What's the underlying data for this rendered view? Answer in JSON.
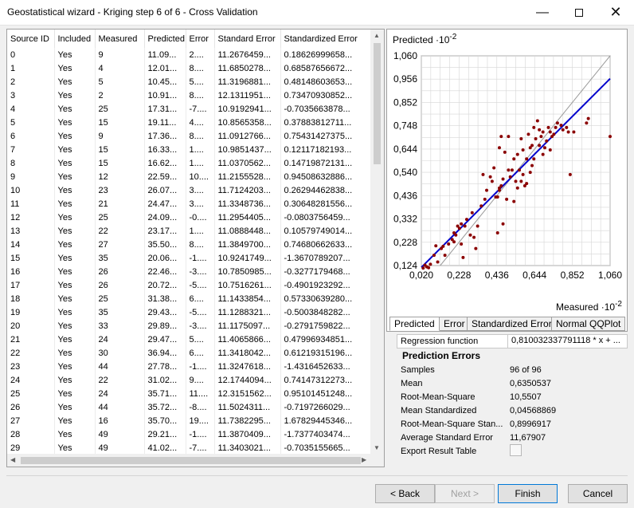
{
  "window": {
    "title": "Geostatistical wizard - Kriging step 6 of 6 - Cross Validation"
  },
  "table": {
    "columns": [
      "Source ID",
      "Included",
      "Measured",
      "Predicted",
      "Error",
      "Standard Error",
      "Standardized Error"
    ],
    "rows": [
      [
        "0",
        "Yes",
        "9",
        "11.09...",
        "2....",
        "11.2676459...",
        "0.18626999658..."
      ],
      [
        "1",
        "Yes",
        "4",
        "12.01...",
        "8....",
        "11.6850278...",
        "0.68587656672..."
      ],
      [
        "2",
        "Yes",
        "5",
        "10.45...",
        "5....",
        "11.3196881...",
        "0.48148603653..."
      ],
      [
        "3",
        "Yes",
        "2",
        "10.91...",
        "8....",
        "12.1311951...",
        "0.73470930852..."
      ],
      [
        "4",
        "Yes",
        "25",
        "17.31...",
        "-7....",
        "10.9192941...",
        "-0.7035663878..."
      ],
      [
        "5",
        "Yes",
        "15",
        "19.11...",
        "4....",
        "10.8565358...",
        "0.37883812711..."
      ],
      [
        "6",
        "Yes",
        "9",
        "17.36...",
        "8....",
        "11.0912766...",
        "0.75431427375..."
      ],
      [
        "7",
        "Yes",
        "15",
        "16.33...",
        "1....",
        "10.9851437...",
        "0.12117182193..."
      ],
      [
        "8",
        "Yes",
        "15",
        "16.62...",
        "1....",
        "11.0370562...",
        "0.14719872131..."
      ],
      [
        "9",
        "Yes",
        "12",
        "22.59...",
        "10....",
        "11.2155528...",
        "0.94508632886..."
      ],
      [
        "10",
        "Yes",
        "23",
        "26.07...",
        "3....",
        "11.7124203...",
        "0.26294462838..."
      ],
      [
        "11",
        "Yes",
        "21",
        "24.47...",
        "3....",
        "11.3348736...",
        "0.30648281556..."
      ],
      [
        "12",
        "Yes",
        "25",
        "24.09...",
        "-0....",
        "11.2954405...",
        "-0.0803756459..."
      ],
      [
        "13",
        "Yes",
        "22",
        "23.17...",
        "1....",
        "11.0888448...",
        "0.10579749014..."
      ],
      [
        "14",
        "Yes",
        "27",
        "35.50...",
        "8....",
        "11.3849700...",
        "0.74680662633..."
      ],
      [
        "15",
        "Yes",
        "35",
        "20.06...",
        "-1....",
        "10.9241749...",
        "-1.3670789207..."
      ],
      [
        "16",
        "Yes",
        "26",
        "22.46...",
        "-3....",
        "10.7850985...",
        "-0.3277179468..."
      ],
      [
        "17",
        "Yes",
        "26",
        "20.72...",
        "-5....",
        "10.7516261...",
        "-0.4901923292..."
      ],
      [
        "18",
        "Yes",
        "25",
        "31.38...",
        "6....",
        "11.1433854...",
        "0.57330639280..."
      ],
      [
        "19",
        "Yes",
        "35",
        "29.43...",
        "-5....",
        "11.1288321...",
        "-0.5003848282..."
      ],
      [
        "20",
        "Yes",
        "33",
        "29.89...",
        "-3....",
        "11.1175097...",
        "-0.2791759822..."
      ],
      [
        "21",
        "Yes",
        "24",
        "29.47...",
        "5....",
        "11.4065866...",
        "0.47996934851..."
      ],
      [
        "22",
        "Yes",
        "30",
        "36.94...",
        "6....",
        "11.3418042...",
        "0.61219315196..."
      ],
      [
        "23",
        "Yes",
        "44",
        "27.78...",
        "-1....",
        "11.3247618...",
        "-1.4316452633..."
      ],
      [
        "24",
        "Yes",
        "22",
        "31.02...",
        "9....",
        "12.1744094...",
        "0.74147312273..."
      ],
      [
        "25",
        "Yes",
        "24",
        "35.71...",
        "11....",
        "12.3151562...",
        "0.95101451248..."
      ],
      [
        "26",
        "Yes",
        "44",
        "35.72...",
        "-8....",
        "11.5024311...",
        "-0.7197266029..."
      ],
      [
        "27",
        "Yes",
        "16",
        "35.70...",
        "19....",
        "11.7382295...",
        "1.67829445346..."
      ],
      [
        "28",
        "Yes",
        "49",
        "29.21...",
        "-1....",
        "11.3870409...",
        "-1.7377403474..."
      ],
      [
        "29",
        "Yes",
        "49",
        "41.02...",
        "-7....",
        "11.3403021...",
        "-0.7035155665..."
      ]
    ]
  },
  "chart_data": {
    "type": "scatter",
    "ylabel": "Predicted",
    "ylabel_exp": "-2",
    "xlabel": "Measured",
    "xlabel_exp": "-2",
    "xlim": [
      0.02,
      1.06
    ],
    "ylim": [
      0.124,
      1.06
    ],
    "xticks": [
      "0,020",
      "0,228",
      "0,436",
      "0,644",
      "0,852",
      "1,060"
    ],
    "yticks": [
      "1,060",
      "0,956",
      "0,852",
      "0,748",
      "0,644",
      "0,540",
      "0,436",
      "0,332",
      "0,228",
      "0,124"
    ],
    "regression": {
      "slope": 0.81,
      "intercept": 0.0995
    },
    "reference_line": "1:1",
    "points": [
      [
        0.03,
        0.113
      ],
      [
        0.04,
        0.126
      ],
      [
        0.05,
        0.118
      ],
      [
        0.06,
        0.114
      ],
      [
        0.07,
        0.13
      ],
      [
        0.09,
        0.17
      ],
      [
        0.1,
        0.212
      ],
      [
        0.11,
        0.14
      ],
      [
        0.13,
        0.2
      ],
      [
        0.14,
        0.21
      ],
      [
        0.15,
        0.17
      ],
      [
        0.17,
        0.22
      ],
      [
        0.19,
        0.24
      ],
      [
        0.2,
        0.23
      ],
      [
        0.2,
        0.27
      ],
      [
        0.21,
        0.26
      ],
      [
        0.22,
        0.3
      ],
      [
        0.23,
        0.29
      ],
      [
        0.24,
        0.22
      ],
      [
        0.24,
        0.31
      ],
      [
        0.25,
        0.16
      ],
      [
        0.26,
        0.3
      ],
      [
        0.27,
        0.33
      ],
      [
        0.29,
        0.26
      ],
      [
        0.3,
        0.36
      ],
      [
        0.31,
        0.25
      ],
      [
        0.32,
        0.2
      ],
      [
        0.33,
        0.3
      ],
      [
        0.35,
        0.39
      ],
      [
        0.36,
        0.53
      ],
      [
        0.37,
        0.42
      ],
      [
        0.38,
        0.46
      ],
      [
        0.4,
        0.52
      ],
      [
        0.41,
        0.5
      ],
      [
        0.42,
        0.56
      ],
      [
        0.43,
        0.43
      ],
      [
        0.44,
        0.27
      ],
      [
        0.44,
        0.43
      ],
      [
        0.45,
        0.46
      ],
      [
        0.45,
        0.65
      ],
      [
        0.46,
        0.48
      ],
      [
        0.47,
        0.31
      ],
      [
        0.47,
        0.51
      ],
      [
        0.48,
        0.63
      ],
      [
        0.49,
        0.42
      ],
      [
        0.5,
        0.55
      ],
      [
        0.51,
        0.52
      ],
      [
        0.52,
        0.55
      ],
      [
        0.53,
        0.41
      ],
      [
        0.53,
        0.6
      ],
      [
        0.54,
        0.5
      ],
      [
        0.55,
        0.47
      ],
      [
        0.55,
        0.62
      ],
      [
        0.56,
        0.55
      ],
      [
        0.57,
        0.69
      ],
      [
        0.58,
        0.64
      ],
      [
        0.58,
        0.53
      ],
      [
        0.59,
        0.48
      ],
      [
        0.6,
        0.49
      ],
      [
        0.6,
        0.6
      ],
      [
        0.61,
        0.71
      ],
      [
        0.62,
        0.65
      ],
      [
        0.62,
        0.54
      ],
      [
        0.63,
        0.66
      ],
      [
        0.63,
        0.57
      ],
      [
        0.64,
        0.6
      ],
      [
        0.64,
        0.74
      ],
      [
        0.65,
        0.69
      ],
      [
        0.66,
        0.77
      ],
      [
        0.67,
        0.73
      ],
      [
        0.67,
        0.66
      ],
      [
        0.68,
        0.7
      ],
      [
        0.69,
        0.72
      ],
      [
        0.69,
        0.62
      ],
      [
        0.7,
        0.65
      ],
      [
        0.71,
        0.68
      ],
      [
        0.72,
        0.74
      ],
      [
        0.73,
        0.72
      ],
      [
        0.73,
        0.64
      ],
      [
        0.74,
        0.7
      ],
      [
        0.75,
        0.71
      ],
      [
        0.76,
        0.74
      ],
      [
        0.77,
        0.76
      ],
      [
        0.79,
        0.75
      ],
      [
        0.8,
        0.73
      ],
      [
        0.82,
        0.74
      ],
      [
        0.83,
        0.72
      ],
      [
        0.86,
        0.72
      ],
      [
        0.93,
        0.76
      ],
      [
        0.94,
        0.78
      ],
      [
        1.06,
        0.7
      ],
      [
        0.84,
        0.53
      ],
      [
        0.45,
        0.47
      ],
      [
        0.57,
        0.5
      ],
      [
        0.5,
        0.7
      ],
      [
        0.46,
        0.7
      ]
    ]
  },
  "tabs": [
    "Predicted",
    "Error",
    "Standardized Error",
    "Normal QQPlot"
  ],
  "regression_function": {
    "label": "Regression function",
    "value": "0,810032337791118 * x + ..."
  },
  "prediction_errors": {
    "title": "Prediction Errors",
    "rows": [
      {
        "k": "Samples",
        "v": "96 of 96"
      },
      {
        "k": "Mean",
        "v": "0,6350537"
      },
      {
        "k": "Root-Mean-Square",
        "v": "10,5507"
      },
      {
        "k": "Mean Standardized",
        "v": "0,04568869"
      },
      {
        "k": "Root-Mean-Square Stan...",
        "v": "0,8996917"
      },
      {
        "k": "Average Standard Error",
        "v": "11,67907"
      },
      {
        "k": "Export Result Table",
        "v": ""
      }
    ]
  },
  "buttons": {
    "back": "< Back",
    "next": "Next >",
    "finish": "Finish",
    "cancel": "Cancel"
  },
  "colors": {
    "points": "#8b0000",
    "regression": "#0000cc",
    "reference": "#9a9a9a",
    "grid": "#d6d6d6"
  }
}
